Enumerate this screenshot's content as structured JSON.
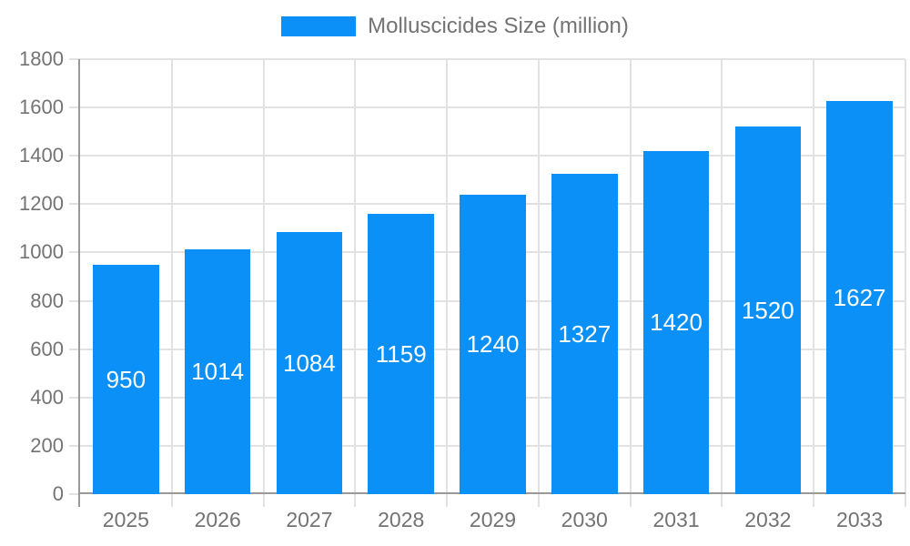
{
  "chart_data": {
    "type": "bar",
    "title": "",
    "legend": "Molluscicides Size (million)",
    "categories": [
      "2025",
      "2026",
      "2027",
      "2028",
      "2029",
      "2030",
      "2031",
      "2032",
      "2033"
    ],
    "values": [
      950,
      1014,
      1084,
      1159,
      1240,
      1327,
      1420,
      1520,
      1627
    ],
    "xlabel": "",
    "ylabel": "",
    "ylim": [
      0,
      1800
    ],
    "y_ticks": [
      0,
      200,
      400,
      600,
      800,
      1000,
      1200,
      1400,
      1600,
      1800
    ],
    "grid": "horizontal and vertical light gray gridlines",
    "legend_position": "top-center",
    "bar_labels_inside": true,
    "colors": {
      "bar": "#0a90f6",
      "axis": "#999999",
      "grid": "#e2e2e2",
      "text": "#737373",
      "bar_label": "#ffffff",
      "background": "#ffffff"
    }
  }
}
